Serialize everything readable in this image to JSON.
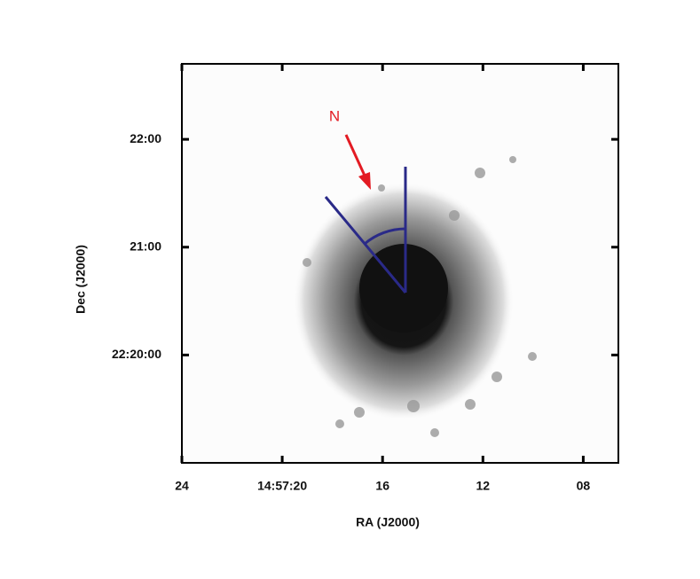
{
  "chart_data": {
    "type": "image",
    "x_label": "RA (J2000)",
    "y_label": "Dec (J2000)",
    "annotation": "N",
    "xlim": [
      24,
      6.6
    ],
    "xticks": [
      24,
      {
        "value": 20,
        "label": "14:57:20"
      },
      16,
      12,
      {
        "value": 8,
        "label": "08"
      }
    ],
    "ylim": [
      19,
      22.7
    ],
    "yticks": [
      {
        "value": 22,
        "label": "22:00"
      },
      {
        "value": 21,
        "label": "21:00"
      },
      {
        "value": 20,
        "label": "22:20:00"
      }
    ]
  }
}
